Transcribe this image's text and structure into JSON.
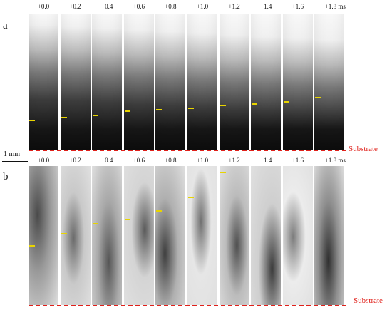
{
  "panels": [
    {
      "label": "a",
      "times": [
        "+0.0",
        "+0.2",
        "+0.4",
        "+0.6",
        "+0.8",
        "+1.0",
        "+1.2",
        "+1.4",
        "+1.6",
        "+1.8 ms"
      ],
      "marker_heights": [
        0.22,
        0.24,
        0.26,
        0.29,
        0.3,
        0.31,
        0.33,
        0.34,
        0.36,
        0.39
      ]
    },
    {
      "label": "b",
      "times": [
        "+0.0",
        "+0.2",
        "+0.4",
        "+0.6",
        "+0.8",
        "+1.0",
        "+1.2",
        "+1.4",
        "+1.6",
        "+1.8 ms"
      ],
      "marker_heights": [
        0.43,
        0.52,
        0.59,
        0.62,
        0.68,
        0.78,
        0.96,
        null,
        null,
        null
      ]
    }
  ],
  "substrate_label": "Substrate",
  "scale_bar_label": "1 mm",
  "colors": {
    "marker": "#e8d400",
    "substrate_line": "#e0201a"
  }
}
